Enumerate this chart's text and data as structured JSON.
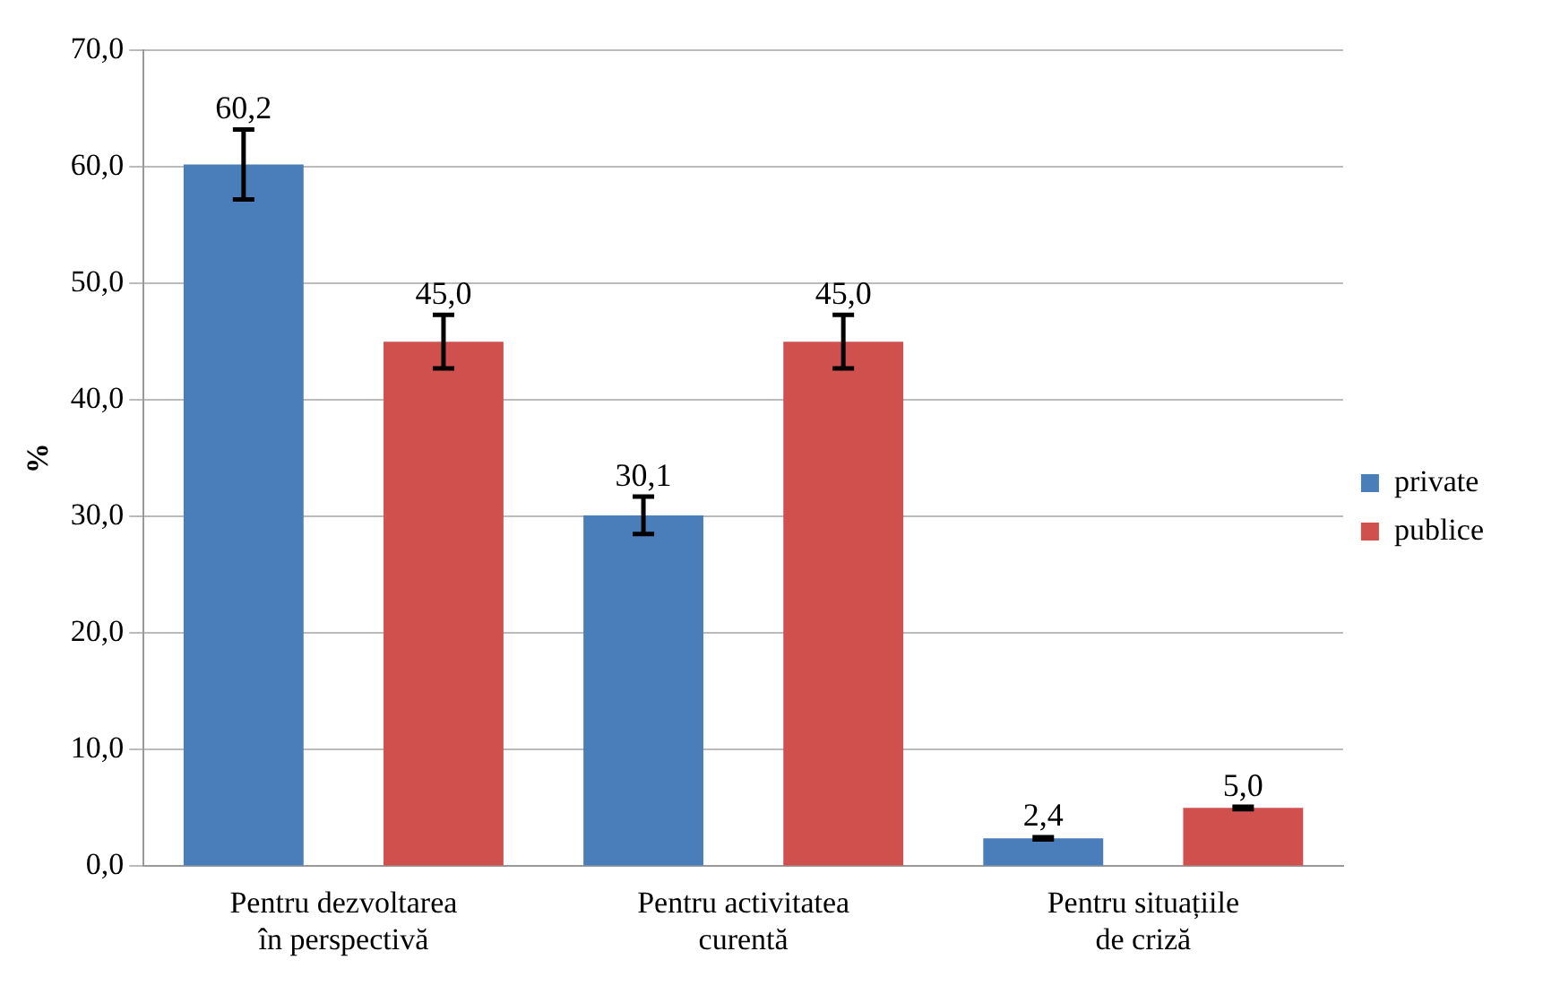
{
  "chart_data": {
    "type": "bar",
    "ylabel": "%",
    "categories": [
      "Pentru dezvoltarea în perspectivă",
      "Pentru activitatea curentă",
      "Pentru situațiile de criză"
    ],
    "series": [
      {
        "name": "private",
        "color": "#4a7ebb",
        "values": [
          60.2,
          30.1,
          2.4
        ],
        "errors": [
          3.0,
          1.6,
          0.1
        ],
        "value_labels": [
          "60,2",
          "30,1",
          "2,4"
        ]
      },
      {
        "name": "publice",
        "color": "#d0504d",
        "values": [
          45.0,
          45.0,
          5.0
        ],
        "errors": [
          2.3,
          2.3,
          0.1
        ],
        "value_labels": [
          "45,0",
          "45,0",
          "5,0"
        ]
      }
    ],
    "ylim": [
      0,
      70
    ],
    "yticks": [
      {
        "value": 0,
        "label": "0,0"
      },
      {
        "value": 10,
        "label": "10,0"
      },
      {
        "value": 20,
        "label": "20,0"
      },
      {
        "value": 30,
        "label": "30,0"
      },
      {
        "value": 40,
        "label": "40,0"
      },
      {
        "value": 50,
        "label": "50,0"
      },
      {
        "value": 60,
        "label": "60,0"
      },
      {
        "value": 70,
        "label": "70,0"
      }
    ],
    "grid": "y",
    "legend": "right"
  }
}
